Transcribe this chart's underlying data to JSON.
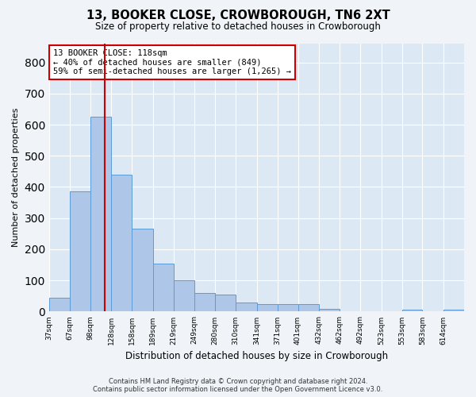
{
  "title": "13, BOOKER CLOSE, CROWBOROUGH, TN6 2XT",
  "subtitle": "Size of property relative to detached houses in Crowborough",
  "xlabel": "Distribution of detached houses by size in Crowborough",
  "ylabel": "Number of detached properties",
  "footer_line1": "Contains HM Land Registry data © Crown copyright and database right 2024.",
  "footer_line2": "Contains public sector information licensed under the Open Government Licence v3.0.",
  "property_label": "13 BOOKER CLOSE: 118sqm",
  "annotation_line1": "← 40% of detached houses are smaller (849)",
  "annotation_line2": "59% of semi-detached houses are larger (1,265) →",
  "bar_edges": [
    37,
    67,
    98,
    128,
    158,
    189,
    219,
    249,
    280,
    310,
    341,
    371,
    401,
    432,
    462,
    492,
    523,
    553,
    583,
    614,
    644
  ],
  "bar_heights": [
    45,
    385,
    625,
    440,
    265,
    155,
    100,
    60,
    55,
    30,
    25,
    25,
    25,
    10,
    0,
    0,
    0,
    5,
    0,
    5
  ],
  "bar_color": "#aec6e8",
  "bar_edge_color": "#5b9bd5",
  "vline_x": 118,
  "vline_color": "#cc0000",
  "bg_color": "#dce9f5",
  "annotation_box_color": "#cc0000",
  "fig_bg_color": "#f0f4f8",
  "ylim": [
    0,
    860
  ],
  "yticks": [
    0,
    100,
    200,
    300,
    400,
    500,
    600,
    700,
    800
  ],
  "grid_color": "#ffffff"
}
